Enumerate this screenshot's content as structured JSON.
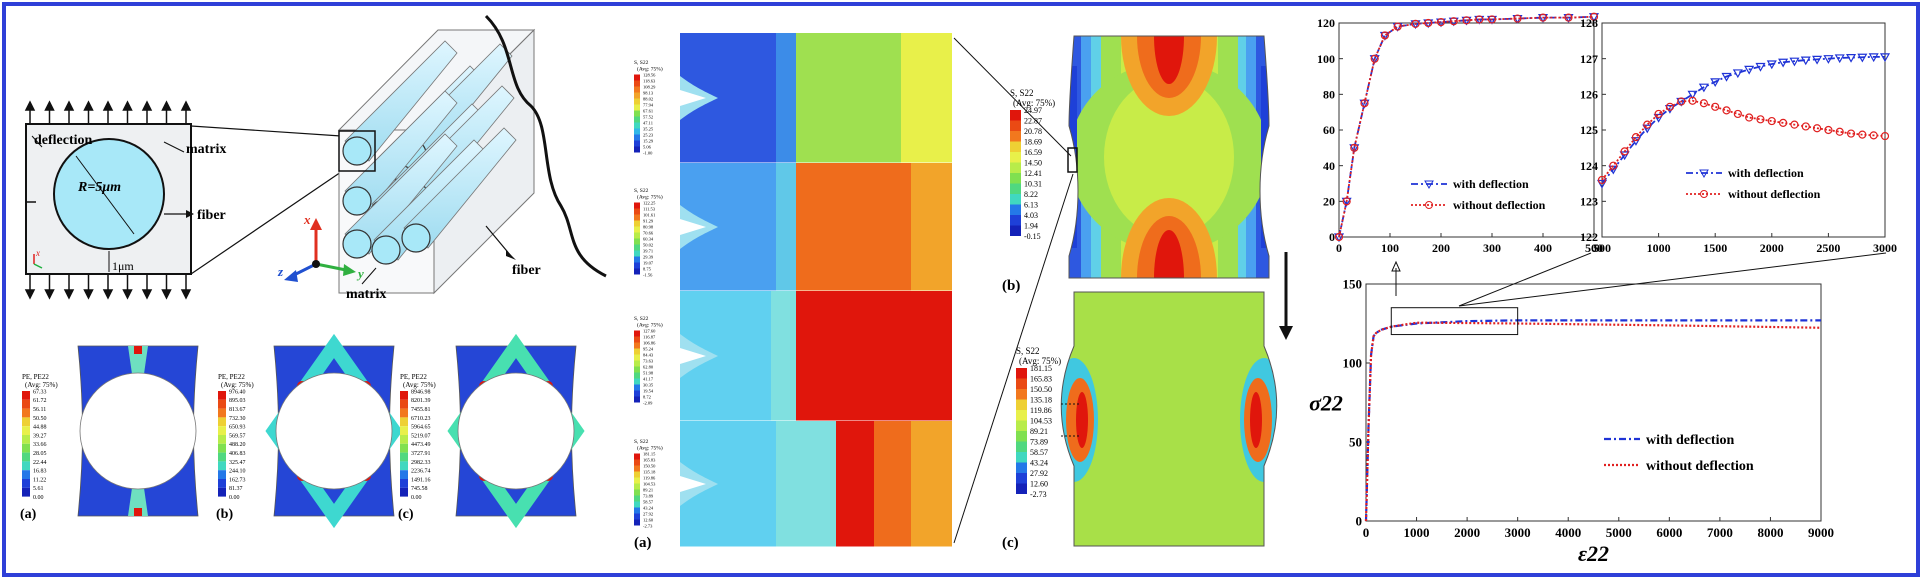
{
  "colors": {
    "border": "#2e3fd8",
    "fea_red": "#e0160c",
    "fea_orange": "#ef6c1c",
    "fea_yellow": "#e8f04a",
    "fea_green": "#9fe050",
    "fea_cyan": "#6ee0e0",
    "fea_blue": "#1e40d8",
    "fiber_fill": "#a8e8f8",
    "with_deflection": "#1f33d6",
    "without_deflection": "#e02020"
  },
  "schematic": {
    "deflection": "deflection",
    "matrix": "matrix",
    "fiber": "fiber",
    "radius": "R=5μm",
    "gap": "1μm",
    "axis_x": "x",
    "axis_y": "y",
    "axis_z": "z",
    "matrix_3d": "matrix",
    "fiber_3d": "fiber"
  },
  "pe_panels": [
    {
      "label": "(a)",
      "legend_title": "PE, PE22",
      "legend_avg": "(Avg: 75%)",
      "values": [
        "67.33",
        "61.72",
        "56.11",
        "50.50",
        "44.88",
        "39.27",
        "33.66",
        "28.05",
        "22.44",
        "16.83",
        "11.22",
        "5.61",
        "0.00"
      ]
    },
    {
      "label": "(b)",
      "legend_title": "PE, PE22",
      "legend_avg": "(Avg: 75%)",
      "values": [
        "976.40",
        "895.03",
        "813.67",
        "732.30",
        "650.93",
        "569.57",
        "488.20",
        "406.83",
        "325.47",
        "244.10",
        "162.73",
        "81.37",
        "0.00"
      ]
    },
    {
      "label": "(c)",
      "legend_title": "PE, PE22",
      "legend_avg": "(Avg: 75%)",
      "values": [
        "8946.98",
        "8201.39",
        "7455.81",
        "6710.23",
        "5964.65",
        "5219.07",
        "4473.49",
        "3727.91",
        "2982.33",
        "2236.74",
        "1491.16",
        "745.58",
        "0.00"
      ]
    }
  ],
  "crack_panel": {
    "label": "(a)",
    "legends": [
      {
        "title": "S, S22",
        "avg": "(Avg: 75%)",
        "values": [
          "128.56",
          "118.63",
          "108.29",
          "98.13",
          "88.02",
          "77.94",
          "67.61",
          "57.52",
          "47.11",
          "35.25",
          "25.23",
          "15.29",
          "5.06",
          "-1.00"
        ]
      },
      {
        "title": "S, S22",
        "avg": "(Avg: 75%)",
        "values": [
          "122.25",
          "111.53",
          "101.61",
          "91.29",
          "80.98",
          "70.66",
          "60.34",
          "50.02",
          "39.71",
          "29.39",
          "19.07",
          "8.75",
          "-1.56"
        ]
      },
      {
        "title": "S, S22",
        "avg": "(Avg: 75%)",
        "values": [
          "127.60",
          "116.87",
          "106.86",
          "95.24",
          "84.43",
          "73.63",
          "62.80",
          "51.98",
          "41.17",
          "30.35",
          "19.54",
          "8.72",
          "-2.09"
        ]
      },
      {
        "title": "S, S22",
        "avg": "(Avg: 75%)",
        "values": [
          "181.15",
          "165.83",
          "150.50",
          "135.18",
          "119.86",
          "104.53",
          "89.21",
          "73.89",
          "58.57",
          "43.24",
          "27.92",
          "12.60",
          "-2.73"
        ]
      }
    ]
  },
  "stress_b": {
    "label": "(b)",
    "legend_title": "S, S22",
    "legend_avg": "(Avg: 75%)",
    "values": [
      "24.97",
      "22.87",
      "20.78",
      "18.69",
      "16.59",
      "14.50",
      "12.41",
      "10.31",
      "8.22",
      "6.13",
      "4.03",
      "1.94",
      "-0.15"
    ]
  },
  "stress_c": {
    "label": "(c)",
    "legend_title": "S, S22",
    "legend_avg": "(Avg: 75%)",
    "values": [
      "181.15",
      "165.83",
      "150.50",
      "135.18",
      "119.86",
      "104.53",
      "89.21",
      "73.89",
      "58.57",
      "43.24",
      "27.92",
      "12.60",
      "-2.73"
    ]
  },
  "chart_data": [
    {
      "type": "line",
      "xlim": [
        0,
        500
      ],
      "ylim": [
        0,
        120
      ],
      "xticks": [
        "0",
        "100",
        "200",
        "300",
        "400",
        "500"
      ],
      "yticks": [
        "0",
        "20",
        "40",
        "60",
        "80",
        "100",
        "120"
      ],
      "grid": false,
      "legend_position": "lower-right",
      "series": [
        {
          "name": "with deflection",
          "x": [
            0,
            15,
            30,
            50,
            70,
            90,
            115,
            150,
            175,
            200,
            225,
            250,
            275,
            300,
            350,
            400,
            450,
            500
          ],
          "y": [
            0,
            20,
            50,
            75,
            100,
            113,
            118,
            119.5,
            120,
            120.5,
            121,
            121.5,
            122,
            122,
            122.5,
            123,
            123,
            123.5
          ]
        },
        {
          "name": "without deflection",
          "x": [
            0,
            15,
            30,
            50,
            70,
            90,
            115,
            150,
            175,
            200,
            225,
            250,
            275,
            300,
            350,
            400,
            450,
            500
          ],
          "y": [
            0,
            20,
            50,
            75,
            100,
            113,
            118,
            119.5,
            120,
            120.5,
            121,
            121.5,
            122,
            122,
            122.5,
            123,
            123,
            123.5
          ]
        }
      ]
    },
    {
      "type": "line",
      "xlim": [
        500,
        3000
      ],
      "ylim": [
        122,
        128
      ],
      "xticks": [
        "500",
        "1000",
        "1500",
        "2000",
        "2500",
        "3000"
      ],
      "yticks": [
        "122",
        "123",
        "124",
        "125",
        "126",
        "127",
        "128"
      ],
      "grid": false,
      "legend_position": "lower-right",
      "series": [
        {
          "name": "with deflection",
          "x": [
            500,
            600,
            700,
            800,
            900,
            1000,
            1100,
            1200,
            1300,
            1400,
            1500,
            1600,
            1700,
            1800,
            1900,
            2000,
            2100,
            2200,
            2300,
            2400,
            2500,
            2600,
            2700,
            2800,
            2900,
            3000
          ],
          "y": [
            123.5,
            123.9,
            124.3,
            124.7,
            125.05,
            125.35,
            125.6,
            125.8,
            126.0,
            126.2,
            126.35,
            126.5,
            126.6,
            126.7,
            126.78,
            126.85,
            126.9,
            126.93,
            126.96,
            126.98,
            127.0,
            127.02,
            127.03,
            127.04,
            127.05,
            127.05
          ]
        },
        {
          "name": "without deflection",
          "x": [
            500,
            600,
            700,
            800,
            900,
            1000,
            1100,
            1200,
            1300,
            1400,
            1500,
            1600,
            1700,
            1800,
            1900,
            2000,
            2100,
            2200,
            2300,
            2400,
            2500,
            2600,
            2700,
            2800,
            2900,
            3000
          ],
          "y": [
            123.6,
            124.0,
            124.4,
            124.8,
            125.15,
            125.45,
            125.65,
            125.8,
            125.82,
            125.75,
            125.65,
            125.55,
            125.45,
            125.35,
            125.3,
            125.25,
            125.2,
            125.15,
            125.1,
            125.05,
            125.0,
            124.95,
            124.9,
            124.87,
            124.85,
            124.83
          ]
        }
      ]
    },
    {
      "type": "line",
      "xlim": [
        0,
        9000
      ],
      "ylim": [
        0,
        150
      ],
      "xticks": [
        "0",
        "1000",
        "2000",
        "3000",
        "4000",
        "5000",
        "6000",
        "7000",
        "8000",
        "9000"
      ],
      "yticks": [
        "0",
        "50",
        "100",
        "150"
      ],
      "xlabel": "ε22",
      "ylabel": "σ22",
      "grid": false,
      "legend_position": "lower-right",
      "series": [
        {
          "name": "with deflection",
          "x": [
            0,
            50,
            100,
            150,
            200,
            300,
            500,
            1000,
            2000,
            3000,
            4000,
            5000,
            6000,
            7000,
            8000,
            9000
          ],
          "y": [
            0,
            60,
            105,
            117,
            119,
            121,
            123,
            125,
            126.5,
            127,
            127,
            127,
            127,
            127,
            127,
            127
          ]
        },
        {
          "name": "without deflection",
          "x": [
            0,
            50,
            100,
            150,
            200,
            300,
            500,
            1000,
            2000,
            3000,
            4000,
            5000,
            6000,
            7000,
            8000,
            9000
          ],
          "y": [
            0,
            60,
            105,
            117,
            119,
            121,
            123,
            125.5,
            125.3,
            125,
            124.6,
            124.2,
            123.8,
            123.3,
            122.8,
            122.3
          ]
        }
      ]
    }
  ]
}
